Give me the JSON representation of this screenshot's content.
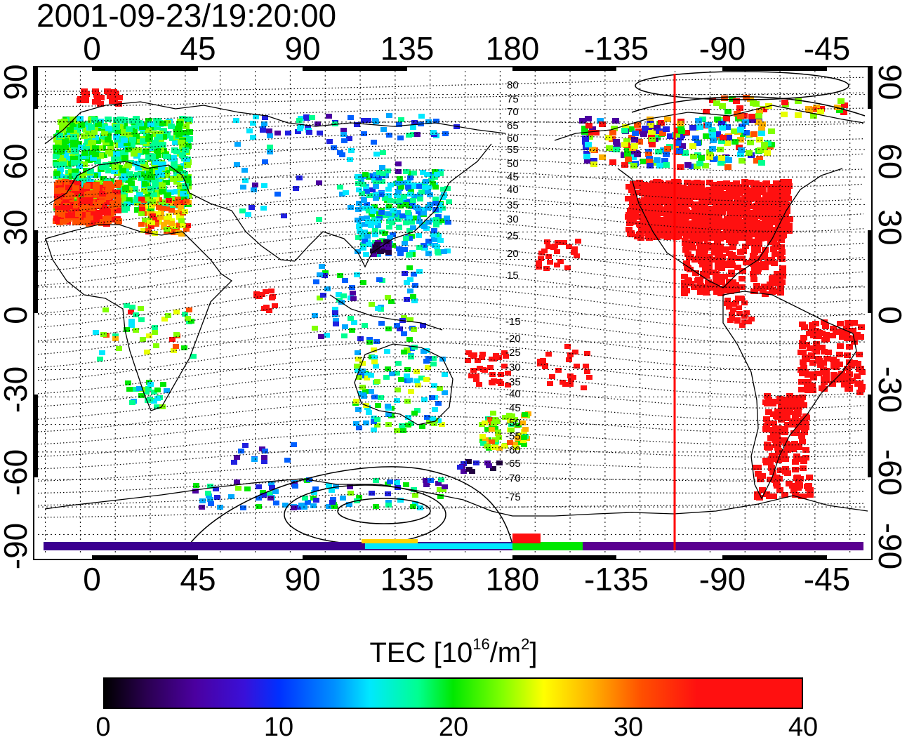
{
  "header": {
    "timestamp": "2001-09-23/19:20:00"
  },
  "axes": {
    "longitude_ticks": [
      "0",
      "45",
      "90",
      "135",
      "180",
      "-135",
      "-90",
      "-45"
    ],
    "latitude_ticks": [
      "90",
      "60",
      "30",
      "0",
      "-30",
      "-60",
      "-90"
    ]
  },
  "contours": {
    "north_labels": [
      "80",
      "75",
      "70",
      "65",
      "60",
      "55",
      "50",
      "45",
      "40",
      "35",
      "30",
      "25",
      "20",
      "15"
    ],
    "south_labels": [
      "-15",
      "-20",
      "-25",
      "-30",
      "-35",
      "-40",
      "-45",
      "-50",
      "-55",
      "-60",
      "-65",
      "-70",
      "-75"
    ]
  },
  "terminator": {
    "longitude": -110,
    "color": "#ff0000"
  },
  "legend": {
    "title_prefix": "TEC  [10",
    "title_exp1": "16",
    "title_mid": "/m",
    "title_exp2": "2",
    "title_suffix": "]",
    "ticks": [
      "0",
      "10",
      "20",
      "30",
      "40"
    ],
    "range": [
      0,
      40
    ]
  },
  "colors": {
    "low": "#000000",
    "mid": "#00ff00",
    "high": "#ff0000"
  }
}
